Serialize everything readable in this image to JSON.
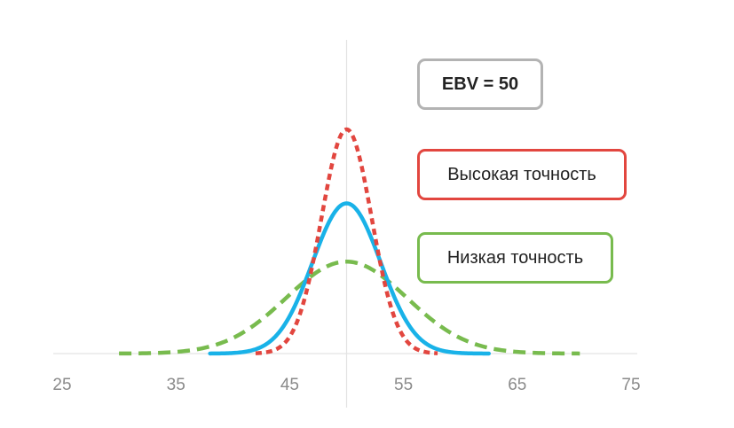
{
  "chart_data": {
    "type": "line",
    "title": "",
    "xlabel": "",
    "ylabel": "",
    "xlim": [
      25,
      75
    ],
    "ylim": [
      0,
      1
    ],
    "x_ticks": [
      "25",
      "35",
      "45",
      "55",
      "65",
      "75"
    ],
    "reference_line_x": 50,
    "grid": false,
    "series": [
      {
        "name": "Высокая точность",
        "style": "dotted",
        "color": "#e2463f",
        "mean": 50,
        "sd": 2.2,
        "peak": 1.0,
        "x_range": [
          42,
          58
        ]
      },
      {
        "name": "",
        "style": "solid",
        "color": "#19b2e8",
        "mean": 50,
        "sd": 3.0,
        "peak": 0.67,
        "x_range": [
          38,
          62.5
        ]
      },
      {
        "name": "Низкая точность",
        "style": "dashed",
        "color": "#78bb4e",
        "mean": 50,
        "sd": 5.3,
        "peak": 0.41,
        "x_range": [
          30,
          70.5
        ]
      }
    ]
  },
  "legend": {
    "ebv": {
      "label": "EBV = 50",
      "color": "#b3b3b3"
    },
    "high": {
      "label": "Высокая точность",
      "color": "#e2463f"
    },
    "low": {
      "label": "Низкая точность",
      "color": "#78bb4e"
    }
  }
}
